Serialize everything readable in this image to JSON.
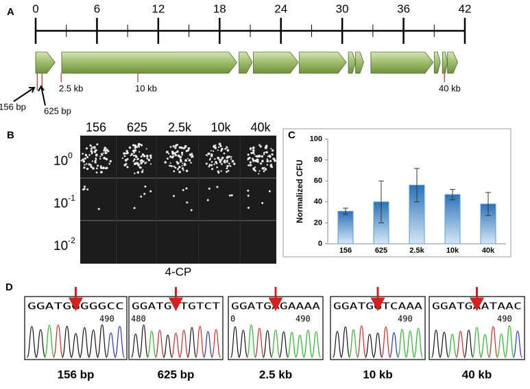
{
  "panels": {
    "a": "A",
    "b": "B",
    "c": "C",
    "d": "D"
  },
  "map": {
    "xlim": [
      0,
      42
    ],
    "xticks": [
      0,
      6,
      12,
      18,
      24,
      30,
      36,
      42
    ],
    "minor_ticks": [
      3,
      9,
      15,
      21,
      27,
      33,
      39
    ],
    "genes": [
      [
        0,
        1.9
      ],
      [
        2.55,
        19.7
      ],
      [
        19.9,
        21.2
      ],
      [
        21.3,
        25.7
      ],
      [
        25.8,
        30.4
      ],
      [
        30.6,
        31.3
      ],
      [
        31.3,
        32.1
      ],
      [
        32.8,
        38.9
      ],
      [
        39.0,
        39.6
      ],
      [
        39.8,
        40.3
      ],
      [
        40.3,
        41.3
      ]
    ],
    "insertions": [
      {
        "kb": 0.156,
        "label": "156 bp"
      },
      {
        "kb": 0.625,
        "label": "625 bp"
      },
      {
        "kb": 2.5,
        "label": "2.5 kb"
      },
      {
        "kb": 10,
        "label": "10 kb"
      },
      {
        "kb": 40,
        "label": "40 kb"
      }
    ]
  },
  "plates": {
    "columns": [
      "156",
      "625",
      "2.5k",
      "10k",
      "40k"
    ],
    "rows": [
      {
        "base": "10",
        "exp": "0"
      },
      {
        "base": "10",
        "exp": "-1"
      },
      {
        "base": "10",
        "exp": "-2"
      }
    ],
    "caption": "4-CP"
  },
  "chart_data": {
    "type": "bar",
    "ylabel": "Normalized CFU",
    "categories": [
      "156",
      "625",
      "2.5k",
      "10k",
      "40k"
    ],
    "values": [
      31,
      40,
      56,
      47,
      38
    ],
    "errors": [
      3,
      20,
      16,
      5,
      11
    ],
    "color": "#5b9bd5",
    "ylim": [
      0,
      100
    ],
    "yticks": [
      0,
      20,
      40,
      60,
      80,
      100
    ]
  },
  "traces": [
    {
      "sequence": "GGATGGGGGCC",
      "positions": [
        "490"
      ],
      "label": "156 bp"
    },
    {
      "sequence": "GGATGTTGTCT",
      "positions": [
        "480"
      ],
      "label": "625 bp"
    },
    {
      "sequence": "GGATGAGAAAA",
      "positions": [
        "0",
        "490"
      ],
      "label": "2.5 kb"
    },
    {
      "sequence": "GGATGGTCAAA",
      "positions": [
        "490"
      ],
      "label": "10 kb"
    },
    {
      "sequence": "GGATGAATAAC",
      "positions": [
        "490"
      ],
      "label": "40 kb"
    }
  ]
}
